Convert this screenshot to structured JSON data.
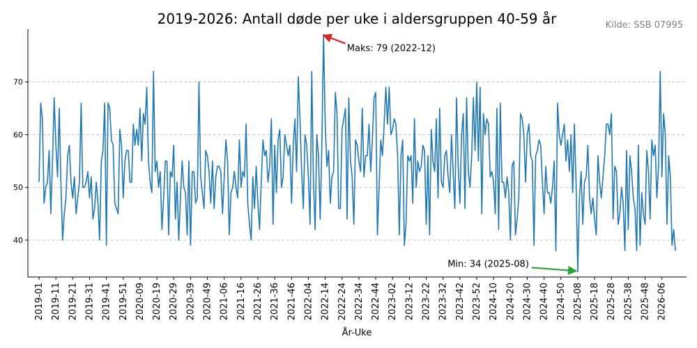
{
  "chart_data": {
    "type": "line",
    "title": "2019-2026: Antall døde per uke i aldersgruppen 40-59 år",
    "source": "Kilde: SSB 07995",
    "xlabel": "År-Uke",
    "ylabel": "",
    "grid": "y-dashed",
    "ylim": [
      33,
      80
    ],
    "yticks": [
      40,
      50,
      60,
      70
    ],
    "xtick_labels": [
      "2019-01",
      "2019-11",
      "2019-21",
      "2019-31",
      "2019-41",
      "2019-51",
      "2020-09",
      "2020-19",
      "2020-29",
      "2020-39",
      "2020-49",
      "2021-06",
      "2021-16",
      "2021-26",
      "2021-36",
      "2021-46",
      "2022-04",
      "2022-14",
      "2022-24",
      "2022-34",
      "2022-44",
      "2023-02",
      "2023-12",
      "2023-22",
      "2023-32",
      "2023-42",
      "2023-52",
      "2024-10",
      "2024-20",
      "2024-30",
      "2024-40",
      "2024-50",
      "2025-08",
      "2025-18",
      "2025-28",
      "2025-38",
      "2025-48",
      "2026-06"
    ],
    "series": [
      {
        "color": "#1f77b4",
        "values": [
          51,
          66,
          63,
          47,
          50,
          51,
          57,
          45,
          55,
          67,
          58,
          52,
          65,
          51,
          40,
          45,
          48,
          56,
          58,
          51,
          48,
          52,
          45,
          48,
          51,
          66,
          50,
          50,
          51,
          53,
          48,
          52,
          44,
          46,
          51,
          47,
          40,
          55,
          57,
          66,
          39,
          66,
          65,
          59,
          58,
          47,
          46,
          45,
          61,
          58,
          48,
          55,
          57,
          57,
          51,
          51,
          62,
          58,
          61,
          58,
          65,
          55,
          64,
          62,
          69,
          55,
          51,
          49,
          72,
          53,
          55,
          50,
          53,
          42,
          48,
          55,
          55,
          41,
          53,
          52,
          58,
          44,
          51,
          40,
          48,
          55,
          50,
          49,
          41,
          55,
          39,
          53,
          53,
          47,
          48,
          70,
          52,
          49,
          46,
          57,
          56,
          53,
          47,
          55,
          46,
          52,
          54,
          54,
          53,
          45,
          52,
          59,
          55,
          41,
          49,
          50,
          53,
          50,
          48,
          59,
          50,
          53,
          52,
          62,
          47,
          43,
          40,
          52,
          46,
          54,
          47,
          42,
          51,
          59,
          56,
          57,
          51,
          54,
          63,
          43,
          58,
          49,
          59,
          61,
          50,
          52,
          60,
          58,
          56,
          58,
          47,
          58,
          63,
          53,
          71,
          63,
          53,
          46,
          60,
          58,
          52,
          43,
          72,
          51,
          42,
          60,
          56,
          44,
          58,
          79,
          62,
          54,
          57,
          47,
          52,
          53,
          68,
          64,
          46,
          46,
          61,
          63,
          65,
          44,
          67,
          55,
          52,
          43,
          59,
          58,
          55,
          53,
          65,
          52,
          56,
          56,
          62,
          53,
          59,
          67,
          68,
          41,
          50,
          59,
          56,
          62,
          69,
          62,
          69,
          60,
          61,
          63,
          62,
          56,
          41,
          56,
          59,
          39,
          43,
          56,
          55,
          56,
          47,
          63,
          50,
          55,
          53,
          54,
          58,
          57,
          43,
          56,
          41,
          61,
          55,
          53,
          63,
          48,
          65,
          51,
          50,
          56,
          57,
          52,
          49,
          60,
          53,
          46,
          67,
          54,
          47,
          60,
          64,
          46,
          67,
          53,
          50,
          56,
          67,
          57,
          70,
          55,
          69,
          45,
          64,
          60,
          63,
          62,
          52,
          53,
          51,
          45,
          65,
          42,
          66,
          51,
          51,
          48,
          52,
          49,
          40,
          54,
          55,
          41,
          44,
          48,
          64,
          63,
          60,
          51,
          60,
          62,
          56,
          55,
          39,
          56,
          57,
          59,
          58,
          51,
          45,
          54,
          49,
          49,
          47,
          50,
          55,
          38,
          66,
          60,
          58,
          60,
          62,
          55,
          59,
          53,
          60,
          49,
          62,
          51,
          34,
          48,
          53,
          43,
          51,
          52,
          58,
          48,
          45,
          48,
          44,
          41,
          56,
          51,
          48,
          52,
          56,
          62,
          62,
          60,
          64,
          44,
          54,
          53,
          43,
          45,
          50,
          47,
          38,
          57,
          42,
          56,
          53,
          48,
          46,
          38,
          58,
          39,
          49,
          45,
          43,
          57,
          53,
          44,
          59,
          56,
          58,
          48,
          54,
          72,
          52,
          64,
          60,
          43,
          56,
          52,
          39,
          42,
          38
        ]
      }
    ],
    "annotations": [
      {
        "label": "Maks: 79 (2022-12)",
        "target_index": 168,
        "value": 79,
        "arrow_color": "#d62728"
      },
      {
        "label": "Min: 34 (2025-08)",
        "target_index": 320,
        "value": 34,
        "arrow_color": "#2ca02c"
      }
    ]
  }
}
